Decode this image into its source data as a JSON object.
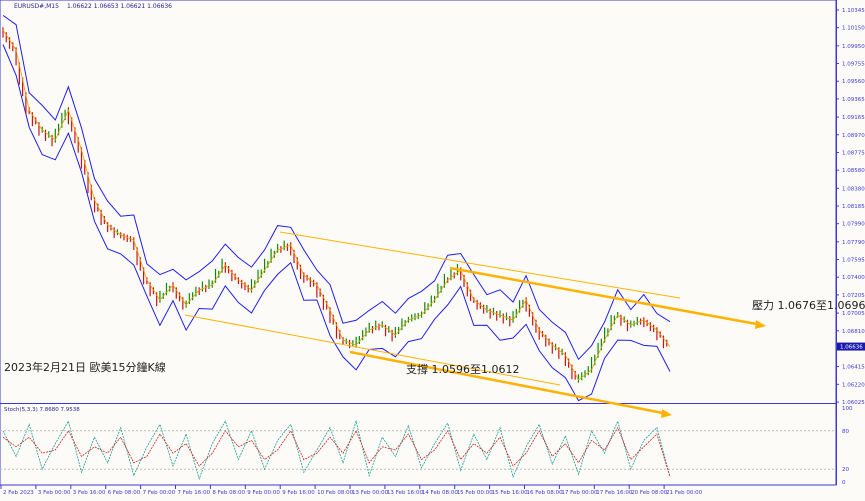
{
  "header": {
    "symbol": "EURUSD#,M15",
    "ohlc": "1.06622 1.06653 1.06621 1.06636"
  },
  "annotations": {
    "title": "2023年2月21日 歐美15分鐘K線",
    "resistance": "壓力 1.0676至1.0696",
    "support": "支撐 1.0596至1.0612"
  },
  "colors": {
    "band": "#1e1ef0",
    "trend": "#ffb300",
    "up": "#0a8a0a",
    "down": "#d01010",
    "axis": "#3a3ad0",
    "stoch_main": "#1a9a8a",
    "stoch_signal": "#d02020"
  },
  "chart_data": [
    {
      "type": "line",
      "title": "EURUSD#,M15",
      "y_ticks": [
        "1.10345",
        "1.10150",
        "1.09950",
        "1.09755",
        "1.09560",
        "1.09365",
        "1.09165",
        "1.08970",
        "1.08775",
        "1.08580",
        "1.08380",
        "1.08185",
        "1.07990",
        "1.07790",
        "1.07595",
        "1.07400",
        "1.07205",
        "1.07005",
        "1.06810",
        "1.06415",
        "1.06220",
        "1.06025"
      ],
      "ylim": [
        1.06025,
        1.10345
      ],
      "current_price": "1.06636",
      "x_ticks": [
        "2 Feb 2023",
        "3 Feb 00:00",
        "3 Feb 16:00",
        "6 Feb 08:00",
        "7 Feb 00:00",
        "7 Feb 16:00",
        "8 Feb 08:00",
        "9 Feb 00:00",
        "9 Feb 16:00",
        "10 Feb 08:00",
        "13 Feb 00:00",
        "13 Feb 16:00",
        "14 Feb 08:00",
        "15 Feb 00:00",
        "15 Feb 16:00",
        "16 Feb 08:00",
        "17 Feb 00:00",
        "17 Feb 16:00",
        "20 Feb 08:00",
        "21 Feb 00:00"
      ],
      "close_samples": [
        1.10125,
        1.09904,
        1.09243,
        1.09023,
        1.08913,
        1.09243,
        1.08802,
        1.08251,
        1.07976,
        1.07865,
        1.0781,
        1.07369,
        1.07149,
        1.07314,
        1.07094,
        1.07259,
        1.07314,
        1.07535,
        1.07369,
        1.07259,
        1.07479,
        1.077,
        1.07755,
        1.07424,
        1.07314,
        1.07039,
        1.06708,
        1.06653,
        1.06819,
        1.06874,
        1.06763,
        1.06929,
        1.06984,
        1.07149,
        1.07369,
        1.07479,
        1.07149,
        1.07039,
        1.06984,
        1.06929,
        1.07149,
        1.06819,
        1.06653,
        1.06543,
        1.06268,
        1.06378,
        1.06708,
        1.06984,
        1.06874,
        1.06929,
        1.06819,
        1.06636
      ]
    },
    {
      "type": "line",
      "title": "Stoch(5,3,3) 7.8680 7.9538",
      "ylim": [
        0,
        100
      ],
      "y_ticks": [
        "100",
        "80",
        "20",
        "0"
      ],
      "main": [
        80,
        40,
        90,
        20,
        60,
        95,
        15,
        70,
        30,
        85,
        10,
        55,
        90,
        25,
        75,
        5,
        60,
        95,
        35,
        80,
        20,
        65,
        90,
        15,
        50,
        85,
        30,
        95,
        10,
        70,
        40,
        88,
        22,
        60,
        92,
        18,
        75,
        35,
        85,
        8,
        55,
        90,
        28,
        72,
        12,
        80,
        45,
        95,
        20,
        65,
        85,
        8
      ],
      "signal": [
        70,
        55,
        70,
        45,
        50,
        80,
        40,
        55,
        45,
        70,
        30,
        40,
        75,
        45,
        60,
        25,
        45,
        80,
        55,
        65,
        35,
        50,
        80,
        35,
        45,
        70,
        45,
        80,
        30,
        55,
        50,
        75,
        35,
        50,
        80,
        35,
        60,
        45,
        70,
        25,
        45,
        80,
        40,
        60,
        30,
        65,
        50,
        85,
        35,
        55,
        75,
        8
      ]
    }
  ]
}
